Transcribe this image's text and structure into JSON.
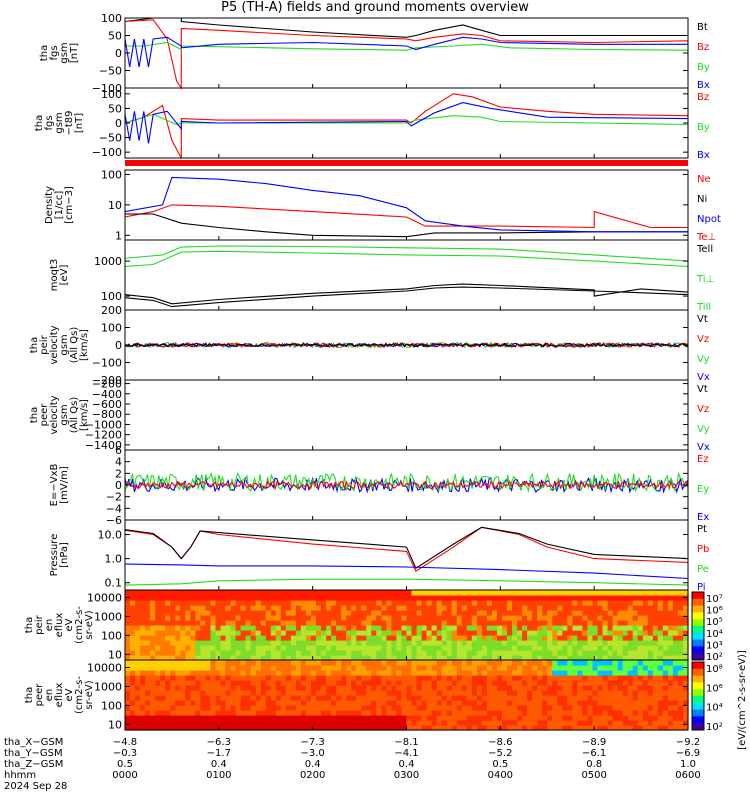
{
  "title": "P5 (TH-A) fields and ground moments overview",
  "date_label": "2024 Sep 28",
  "colorbar_label": "[eV/(cm^2-s-sr-eV)]",
  "colors": {
    "black": "#000000",
    "red": "#ff0000",
    "green": "#22dd22",
    "blue": "#0000ff"
  },
  "chart_data": [
    {
      "type": "line",
      "ylabel": [
        "tha",
        "fgs",
        "gsm",
        "[nT]"
      ],
      "yticks": [
        "100",
        "50",
        "0",
        "−50",
        "−100"
      ],
      "ylim": [
        -100,
        100
      ],
      "legend": [
        {
          "name": "Bt",
          "color": "#000000"
        },
        {
          "name": "Bz",
          "color": "#ff0000"
        },
        {
          "name": "By",
          "color": "#22dd22"
        },
        {
          "name": "Bx",
          "color": "#0000ff"
        }
      ],
      "series": [
        {
          "name": "Bt",
          "x": [
            0,
            0.3,
            0.35,
            0.55,
            0.6,
            0.6,
            1,
            2,
            3,
            3.1,
            3.3,
            3.6,
            3.8,
            4,
            5,
            6
          ],
          "y": [
            90,
            100,
            100,
            100,
            100,
            90,
            80,
            60,
            45,
            50,
            65,
            80,
            65,
            50,
            50,
            50
          ]
        },
        {
          "name": "Bz",
          "x": [
            0,
            0.3,
            0.45,
            0.55,
            0.6,
            0.6,
            1,
            2,
            3,
            3.1,
            3.3,
            3.6,
            3.8,
            4,
            5,
            6
          ],
          "y": [
            90,
            95,
            40,
            -80,
            -100,
            70,
            65,
            50,
            40,
            35,
            45,
            55,
            50,
            35,
            30,
            35
          ]
        },
        {
          "name": "By",
          "x": [
            0,
            0.2,
            0.45,
            0.6,
            0.6,
            1,
            2,
            3,
            3.1,
            3.5,
            3.8,
            4.1,
            5,
            6
          ],
          "y": [
            20,
            20,
            30,
            10,
            20,
            18,
            12,
            8,
            15,
            20,
            25,
            15,
            10,
            8
          ]
        },
        {
          "name": "Bx",
          "x": [
            0,
            0.05,
            0.1,
            0.15,
            0.2,
            0.25,
            0.3,
            0.45,
            0.6,
            0.6,
            1,
            2,
            3,
            3.1,
            3.3,
            3.6,
            3.8,
            4,
            5,
            6
          ],
          "y": [
            40,
            -40,
            40,
            -40,
            40,
            -40,
            40,
            45,
            20,
            15,
            25,
            30,
            20,
            10,
            25,
            45,
            40,
            30,
            25,
            25
          ]
        }
      ]
    },
    {
      "type": "line",
      "ylabel": [
        "tha",
        "fgs",
        "gsm",
        "−t89",
        "[nT]"
      ],
      "yticks": [
        "100",
        "50",
        "0",
        "−50",
        "−100"
      ],
      "ylim": [
        -120,
        120
      ],
      "legend": [
        {
          "name": "Bz",
          "color": "#ff0000"
        },
        {
          "name": "By",
          "color": "#22dd22"
        },
        {
          "name": "Bx",
          "color": "#0000ff"
        }
      ],
      "series": [
        {
          "name": "Bz",
          "x": [
            0,
            0.2,
            0.4,
            0.5,
            0.6,
            0.6,
            1,
            2,
            3,
            3.05,
            3.2,
            3.5,
            3.7,
            4,
            4.5,
            5,
            6
          ],
          "y": [
            0,
            20,
            60,
            -60,
            -120,
            15,
            10,
            10,
            10,
            0,
            40,
            100,
            90,
            55,
            40,
            30,
            25
          ]
        },
        {
          "name": "By",
          "x": [
            0,
            0.3,
            0.55,
            0.6,
            1,
            3,
            3.1,
            3.5,
            3.8,
            4,
            5,
            6
          ],
          "y": [
            0,
            30,
            -5,
            0,
            0,
            0,
            10,
            25,
            20,
            5,
            0,
            -5
          ]
        },
        {
          "name": "Bx",
          "x": [
            0,
            0.05,
            0.1,
            0.15,
            0.2,
            0.25,
            0.3,
            0.45,
            0.6,
            0.6,
            1,
            3,
            3.05,
            3.3,
            3.6,
            3.9,
            4.5,
            6
          ],
          "y": [
            30,
            -60,
            40,
            -60,
            40,
            -70,
            30,
            40,
            -20,
            5,
            0,
            5,
            -10,
            35,
            70,
            50,
            20,
            15
          ]
        }
      ]
    },
    {
      "type": "line",
      "ylabel": [
        "Density",
        "[1/cc]",
        "[cm−3]"
      ],
      "yticks": [
        "100",
        "10",
        "1"
      ],
      "ylog": true,
      "ylim": [
        0.7,
        140
      ],
      "legend": [
        {
          "name": "Ne",
          "color": "#ff0000"
        },
        {
          "name": "Ni",
          "color": "#000000"
        },
        {
          "name": "Npot",
          "color": "#0000ff"
        },
        {
          "name": "Te⊥",
          "color": "#ff0000"
        }
      ],
      "series": [
        {
          "name": "Ne",
          "x": [
            0,
            0.3,
            0.5,
            1,
            2,
            3,
            3.2,
            3.5,
            4,
            5,
            5,
            5.6,
            6
          ],
          "y": [
            4,
            6,
            10,
            9,
            6,
            4,
            2,
            2,
            2,
            1.8,
            6,
            1.8,
            1.8
          ]
        },
        {
          "name": "Ni",
          "x": [
            0,
            0.3,
            0.6,
            1,
            1.5,
            2,
            3,
            3.3,
            4,
            5,
            6
          ],
          "y": [
            5,
            5,
            2.5,
            1.8,
            1.3,
            1,
            0.9,
            1.2,
            1.2,
            1.3,
            1.3
          ]
        },
        {
          "name": "Npot",
          "x": [
            0,
            0.4,
            0.5,
            1,
            1.5,
            2,
            2.5,
            3,
            3.2,
            3.6,
            4,
            5,
            6
          ],
          "y": [
            6,
            10,
            80,
            70,
            50,
            30,
            20,
            8,
            3,
            2,
            1.5,
            1.3,
            1.3
          ]
        }
      ]
    },
    {
      "type": "line",
      "ylabel": [
        "moqt3",
        "[eV]"
      ],
      "yticks": [
        "1000",
        "100"
      ],
      "ylog": true,
      "ylim": [
        40,
        4000
      ],
      "legend": [
        {
          "name": "Tell",
          "color": "#000000"
        },
        {
          "name": "Ti⊥",
          "color": "#22dd22"
        },
        {
          "name": "Till",
          "color": "#22dd22"
        }
      ],
      "series": [
        {
          "name": "Ti⊥",
          "x": [
            0,
            0.4,
            0.6,
            1,
            2,
            3,
            4,
            5,
            6
          ],
          "y": [
            1200,
            1500,
            2500,
            2700,
            2600,
            2400,
            2200,
            1500,
            1000
          ]
        },
        {
          "name": "Till",
          "x": [
            0,
            0.3,
            0.6,
            1,
            2,
            3,
            4,
            5,
            6
          ],
          "y": [
            700,
            800,
            1800,
            1900,
            1700,
            1500,
            1400,
            1000,
            700
          ]
        },
        {
          "name": "Te⊥",
          "x": [
            0,
            0.3,
            0.5,
            1,
            2,
            3,
            3.3,
            3.6,
            4,
            5,
            5,
            5.5,
            6
          ],
          "y": [
            110,
            90,
            60,
            80,
            120,
            160,
            200,
            220,
            200,
            150,
            100,
            160,
            130
          ]
        },
        {
          "name": "Tell",
          "x": [
            0,
            0.3,
            0.5,
            1,
            2,
            3,
            3.3,
            3.6,
            4,
            5,
            6
          ],
          "y": [
            90,
            75,
            50,
            65,
            100,
            140,
            170,
            180,
            170,
            140,
            110
          ]
        }
      ]
    },
    {
      "type": "line",
      "ylabel": [
        "tha",
        "peir",
        "velocity",
        "gsm",
        "(All Qs)",
        "[km/s]"
      ],
      "yticks": [
        "200",
        "100",
        "0",
        "−100",
        "−200"
      ],
      "ylim": [
        -200,
        200
      ],
      "legend": [
        {
          "name": "Vt",
          "color": "#000000"
        },
        {
          "name": "Vz",
          "color": "#ff0000"
        },
        {
          "name": "Vy",
          "color": "#22dd22"
        },
        {
          "name": "Vx",
          "color": "#0000ff"
        }
      ],
      "series": [
        {
          "name": "Vy",
          "x": [
            0,
            6
          ],
          "y": [
            0,
            0
          ],
          "noise": 15
        },
        {
          "name": "Vx",
          "x": [
            0,
            6
          ],
          "y": [
            0,
            0
          ],
          "noise": 10
        },
        {
          "name": "Vz",
          "x": [
            0,
            6
          ],
          "y": [
            0,
            0
          ],
          "noise": 12
        },
        {
          "name": "Vt",
          "x": [
            0,
            6
          ],
          "y": [
            0,
            0
          ],
          "noise": 8
        }
      ]
    },
    {
      "type": "line",
      "ylabel": [
        "tha",
        "peer",
        "velocity",
        "gsm",
        "(All Qs)",
        "[km/s]"
      ],
      "yticks": [
        "−200",
        "−400",
        "−600",
        "−800",
        "−1000",
        "−1200",
        "−1400"
      ],
      "ylim": [
        -1500,
        -130
      ],
      "legend": [
        {
          "name": "Vt",
          "color": "#000000"
        },
        {
          "name": "Vz",
          "color": "#ff0000"
        },
        {
          "name": "Vy",
          "color": "#22dd22"
        },
        {
          "name": "Vx",
          "color": "#0000ff"
        }
      ],
      "series": []
    },
    {
      "type": "line",
      "ylabel": [
        "E=−VxB",
        "[mV/m]"
      ],
      "yticks": [
        "6",
        "4",
        "2",
        "0",
        "−2",
        "−4",
        "−6"
      ],
      "ylim": [
        -6,
        6
      ],
      "legend": [
        {
          "name": "Ez",
          "color": "#ff0000"
        },
        {
          "name": "Ey",
          "color": "#22dd22"
        },
        {
          "name": "Ex",
          "color": "#0000ff"
        }
      ],
      "series": [
        {
          "name": "Ex",
          "x": [
            0,
            6
          ],
          "y": [
            0,
            0
          ],
          "noise": 1.2
        },
        {
          "name": "Ey",
          "x": [
            0,
            6
          ],
          "y": [
            0.5,
            0.5
          ],
          "noise": 1.5
        },
        {
          "name": "Ez",
          "x": [
            0,
            6
          ],
          "y": [
            0,
            0
          ],
          "noise": 0.6
        }
      ]
    },
    {
      "type": "line",
      "ylabel": [
        "Pressure",
        "[nPa]"
      ],
      "yticks": [
        "10.0",
        "1.0",
        "0.1"
      ],
      "ylog": true,
      "ylim": [
        0.05,
        40
      ],
      "legend": [
        {
          "name": "Pt",
          "color": "#000000"
        },
        {
          "name": "Pb",
          "color": "#ff0000"
        },
        {
          "name": "Pe",
          "color": "#22dd22"
        },
        {
          "name": "Pi",
          "color": "#0000ff"
        }
      ],
      "series": [
        {
          "name": "Pb",
          "x": [
            0,
            0.3,
            0.5,
            0.6,
            0.7,
            0.8,
            1,
            2,
            3,
            3.1,
            3.5,
            3.8,
            4.2,
            4.5,
            5,
            6
          ],
          "y": [
            15,
            10,
            3,
            1,
            3,
            14,
            10,
            4,
            2,
            0.3,
            3,
            20,
            10,
            3,
            1,
            0.7
          ]
        },
        {
          "name": "Pt",
          "x": [
            0,
            0.3,
            0.5,
            0.6,
            0.7,
            0.8,
            1,
            2,
            3,
            3.1,
            3.5,
            3.8,
            4.2,
            4.5,
            5,
            6
          ],
          "y": [
            16,
            11,
            3,
            1,
            3,
            14,
            12,
            6,
            3,
            0.4,
            4,
            20,
            11,
            4,
            1.5,
            1
          ]
        },
        {
          "name": "Pi",
          "x": [
            0,
            0.6,
            1,
            2,
            3,
            4,
            5,
            6
          ],
          "y": [
            0.6,
            0.55,
            0.5,
            0.5,
            0.45,
            0.35,
            0.25,
            0.15
          ]
        },
        {
          "name": "Pe",
          "x": [
            0,
            0.6,
            1,
            2,
            3,
            4,
            5,
            6
          ],
          "y": [
            0.08,
            0.09,
            0.12,
            0.14,
            0.14,
            0.12,
            0.1,
            0.08
          ]
        }
      ]
    },
    {
      "type": "heatmap",
      "ylabel": [
        "tha",
        "peir",
        "en",
        "eflux",
        "eV",
        "(cm2-s-",
        "sr-eV)"
      ],
      "yticks": [
        "10000",
        "1000",
        "100",
        "10"
      ],
      "ylog": true,
      "ylim": [
        5,
        25000
      ]
    },
    {
      "type": "heatmap",
      "ylabel": [
        "tha",
        "peer",
        "en",
        "eflux",
        "eV",
        "(cm2-s-",
        "sr-eV)"
      ],
      "yticks": [
        "10000",
        "1000",
        "100",
        "10"
      ],
      "ylog": true,
      "ylim": [
        5,
        25000
      ]
    }
  ],
  "colorbar_ticks": {
    "ion": [
      "10⁷",
      "10⁶",
      "10⁵",
      "10⁴",
      "10³",
      "10²"
    ],
    "elec": [
      "10⁸",
      "10⁶",
      "10⁴",
      "10²"
    ]
  },
  "xaxis": {
    "xlim": [
      0,
      6
    ],
    "positions": [
      0,
      1,
      2,
      3,
      4,
      5,
      6
    ],
    "rows": [
      {
        "label": "tha_X−GSM",
        "values": [
          "−4.8",
          "−6.3",
          "−7.3",
          "−8.1",
          "−8.6",
          "−8.9",
          "−9.2"
        ]
      },
      {
        "label": "tha_Y−GSM",
        "values": [
          "−0.3",
          "−1.7",
          "−3.0",
          "−4.1",
          "−5.2",
          "−6.1",
          "−6.9"
        ]
      },
      {
        "label": "tha_Z−GSM",
        "values": [
          "0.5",
          "0.4",
          "0.4",
          "0.4",
          "0.5",
          "0.8",
          "1.0"
        ]
      },
      {
        "label": "hhmm",
        "values": [
          "0000",
          "0100",
          "0200",
          "0300",
          "0400",
          "0500",
          "0600"
        ]
      }
    ]
  }
}
